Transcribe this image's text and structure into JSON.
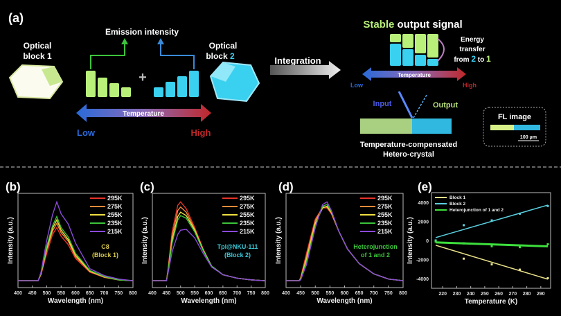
{
  "panel_a": {
    "label": "(a)",
    "block1": [
      "Optical",
      "block 1"
    ],
    "block2": [
      "Optical",
      "block "
    ],
    "block2_num": "2",
    "emission": "Emission intensity",
    "plus": "+",
    "temperature": "Temperature",
    "low": "Low",
    "high": "High",
    "integration": "Integration",
    "stable": "Stable",
    "output_signal": " output signal",
    "energy": [
      "Energy",
      "transfer"
    ],
    "from": "from ",
    "two": "2",
    "to": " to ",
    "one": "1",
    "input": "Input",
    "output": "Output",
    "hetero": [
      "Temperature-compensated",
      "Hetero-crystal"
    ],
    "fl_image": "FL image",
    "scale_bar": "100 μm",
    "colors": {
      "green": "#b8f07a",
      "blue": "#3ad0f0",
      "low": "#2a6ad8",
      "high": "#c0282a"
    }
  },
  "chart_data": [
    {
      "panel": "(b)",
      "type": "line",
      "xlabel": "Wavelength (nm)",
      "ylabel": "Intensity (a.u.)",
      "xlim": [
        400,
        800
      ],
      "ylim": [
        0,
        1.1
      ],
      "xticks": [
        400,
        450,
        500,
        550,
        600,
        650,
        700,
        750,
        800
      ],
      "annotation": [
        "C8",
        "(Block 1)"
      ],
      "annotation_color": "#d8c84a",
      "x": [
        400,
        470,
        480,
        500,
        520,
        535,
        550,
        575,
        600,
        650,
        700,
        750,
        800
      ],
      "series": [
        {
          "name": "295K",
          "color": "#e8332a",
          "values": [
            0.08,
            0.08,
            0.15,
            0.4,
            0.62,
            0.7,
            0.6,
            0.5,
            0.34,
            0.18,
            0.12,
            0.09,
            0.08
          ]
        },
        {
          "name": "275K",
          "color": "#f08a3a",
          "values": [
            0.08,
            0.08,
            0.16,
            0.44,
            0.66,
            0.75,
            0.64,
            0.54,
            0.36,
            0.19,
            0.12,
            0.09,
            0.08
          ]
        },
        {
          "name": "255K",
          "color": "#f0e040",
          "values": [
            0.08,
            0.08,
            0.16,
            0.46,
            0.69,
            0.79,
            0.67,
            0.56,
            0.38,
            0.19,
            0.13,
            0.09,
            0.08
          ]
        },
        {
          "name": "235K",
          "color": "#3cc43c",
          "values": [
            0.08,
            0.08,
            0.17,
            0.48,
            0.72,
            0.83,
            0.7,
            0.59,
            0.4,
            0.2,
            0.13,
            0.09,
            0.08
          ]
        },
        {
          "name": "215K",
          "color": "#8a4ad8",
          "values": [
            0.08,
            0.08,
            0.18,
            0.55,
            0.85,
            1.0,
            0.86,
            0.74,
            0.52,
            0.22,
            0.14,
            0.1,
            0.08
          ]
        }
      ]
    },
    {
      "panel": "(c)",
      "type": "line",
      "xlabel": "Wavelength (nm)",
      "ylabel": "Intensity (a.u.)",
      "xlim": [
        400,
        800
      ],
      "ylim": [
        0,
        1.1
      ],
      "xticks": [
        400,
        450,
        500,
        550,
        600,
        650,
        700,
        750,
        800
      ],
      "annotation": [
        "Tpl@NKU-111",
        "(Block 2)"
      ],
      "annotation_color": "#3ac8d8",
      "x": [
        400,
        450,
        455,
        470,
        490,
        500,
        520,
        550,
        580,
        610,
        650,
        700,
        750,
        800
      ],
      "series": [
        {
          "name": "295K",
          "color": "#e8332a",
          "values": [
            0.08,
            0.08,
            0.2,
            0.65,
            0.96,
            1.0,
            0.92,
            0.7,
            0.45,
            0.25,
            0.15,
            0.11,
            0.09,
            0.08
          ]
        },
        {
          "name": "275K",
          "color": "#f08a3a",
          "values": [
            0.08,
            0.08,
            0.19,
            0.6,
            0.9,
            0.94,
            0.88,
            0.68,
            0.44,
            0.25,
            0.15,
            0.11,
            0.09,
            0.08
          ]
        },
        {
          "name": "255K",
          "color": "#f0e040",
          "values": [
            0.08,
            0.08,
            0.18,
            0.55,
            0.83,
            0.88,
            0.84,
            0.67,
            0.44,
            0.25,
            0.15,
            0.11,
            0.09,
            0.08
          ]
        },
        {
          "name": "235K",
          "color": "#3cc43c",
          "values": [
            0.08,
            0.08,
            0.18,
            0.52,
            0.79,
            0.84,
            0.81,
            0.65,
            0.43,
            0.25,
            0.15,
            0.11,
            0.09,
            0.08
          ]
        },
        {
          "name": "215K",
          "color": "#8a4ad8",
          "values": [
            0.08,
            0.08,
            0.16,
            0.42,
            0.62,
            0.67,
            0.68,
            0.58,
            0.4,
            0.24,
            0.15,
            0.11,
            0.09,
            0.08
          ]
        }
      ]
    },
    {
      "panel": "(d)",
      "type": "line",
      "xlabel": "Wavelength (nm)",
      "ylabel": "Intensity (a.u.)",
      "xlim": [
        400,
        800
      ],
      "ylim": [
        0,
        1.1
      ],
      "xticks": [
        400,
        450,
        500,
        550,
        600,
        650,
        700,
        750,
        800
      ],
      "annotation": [
        "Heterojunction",
        "of 1 and 2"
      ],
      "annotation_color": "#3cc43c",
      "x": [
        400,
        445,
        450,
        470,
        500,
        525,
        540,
        555,
        580,
        610,
        650,
        700,
        750,
        800
      ],
      "series": [
        {
          "name": "295K",
          "color": "#e8332a",
          "values": [
            0.08,
            0.08,
            0.12,
            0.4,
            0.8,
            0.93,
            0.93,
            0.86,
            0.66,
            0.45,
            0.28,
            0.16,
            0.1,
            0.08
          ]
        },
        {
          "name": "275K",
          "color": "#f08a3a",
          "values": [
            0.08,
            0.08,
            0.11,
            0.37,
            0.78,
            0.94,
            0.94,
            0.87,
            0.66,
            0.45,
            0.28,
            0.16,
            0.1,
            0.08
          ]
        },
        {
          "name": "255K",
          "color": "#f0e040",
          "values": [
            0.08,
            0.08,
            0.1,
            0.33,
            0.75,
            0.93,
            0.95,
            0.88,
            0.66,
            0.45,
            0.28,
            0.16,
            0.1,
            0.08
          ]
        },
        {
          "name": "235K",
          "color": "#3cc43c",
          "values": [
            0.08,
            0.08,
            0.1,
            0.3,
            0.72,
            0.95,
            0.97,
            0.89,
            0.66,
            0.45,
            0.28,
            0.16,
            0.1,
            0.08
          ]
        },
        {
          "name": "215K",
          "color": "#8a4ad8",
          "values": [
            0.08,
            0.08,
            0.09,
            0.27,
            0.7,
            0.97,
            1.0,
            0.9,
            0.66,
            0.45,
            0.28,
            0.16,
            0.1,
            0.08
          ]
        }
      ]
    },
    {
      "panel": "(e)",
      "type": "scatter",
      "xlabel": "Temperature (K)",
      "ylabel": "Intensity (a.u.)",
      "xlim": [
        212,
        297
      ],
      "ylim": [
        -5000,
        5000
      ],
      "xticks": [
        220,
        230,
        240,
        250,
        260,
        270,
        280,
        290
      ],
      "yticks": [
        -4000,
        -2000,
        0,
        2000,
        4000
      ],
      "x": [
        215,
        235,
        255,
        275,
        295
      ],
      "series": [
        {
          "name": "Block 1",
          "color": "#e8e08a",
          "values": [
            -100,
            -1900,
            -2500,
            -3050,
            -3950
          ],
          "fit": [
            -500,
            -4050
          ]
        },
        {
          "name": "Block 2",
          "color": "#5ad0e0",
          "values": [
            0,
            1600,
            2100,
            2800,
            3600
          ],
          "fit": [
            300,
            3700
          ]
        },
        {
          "name": "Heterojunction of 1 and 2",
          "color": "#3ce03c",
          "values": [
            -100,
            -300,
            -600,
            -700,
            -400
          ],
          "fit": [
            -200,
            -620
          ]
        }
      ]
    }
  ]
}
